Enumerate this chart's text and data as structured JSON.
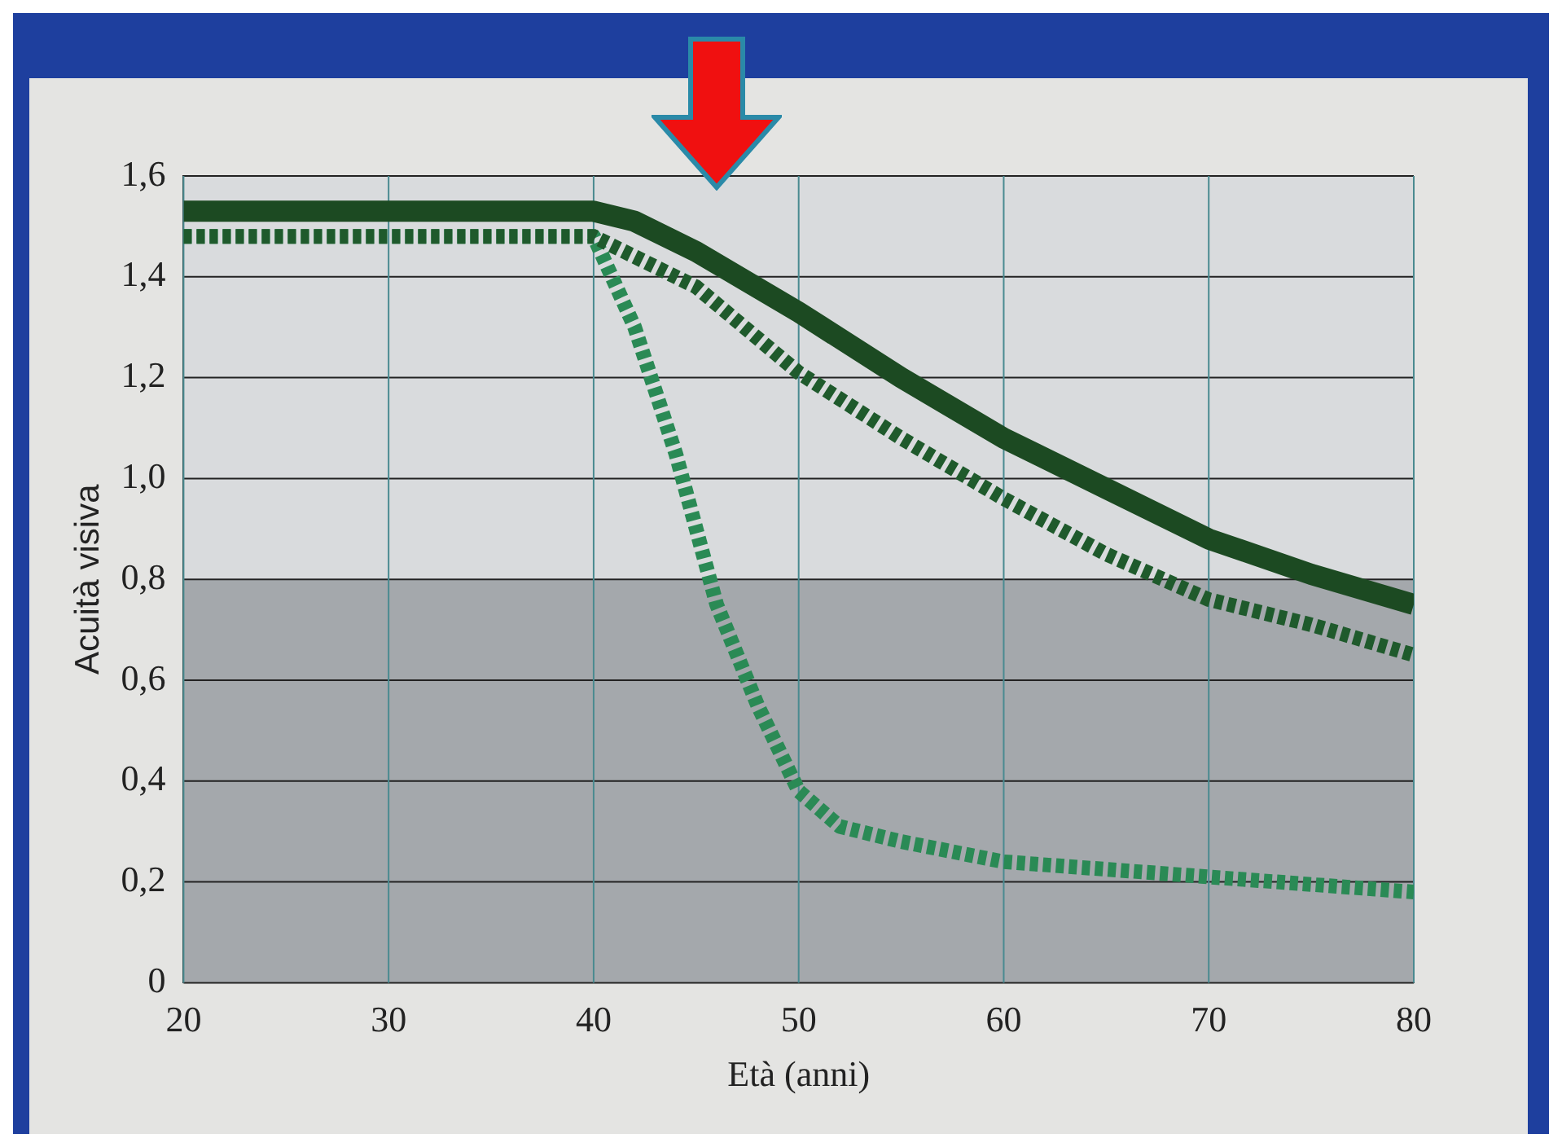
{
  "chart_data": {
    "type": "line",
    "xlabel": "Età (anni)",
    "ylabel": "Acuità visiva",
    "xlim": [
      20,
      80
    ],
    "xticks": [
      20,
      30,
      40,
      50,
      60,
      70,
      80
    ],
    "ylim": [
      0,
      1.6
    ],
    "yticks": [
      0,
      {
        "value": 0.2,
        "label": "0,2"
      },
      {
        "value": 0.4,
        "label": "0,4"
      },
      {
        "value": 0.6,
        "label": "0,6"
      },
      {
        "value": 0.8,
        "label": "0,8"
      },
      {
        "value": 1.0,
        "label": "1,0"
      },
      {
        "value": 1.2,
        "label": "1,2"
      },
      {
        "value": 1.4,
        "label": "1,4"
      },
      {
        "value": 1.6,
        "label": "1,6"
      }
    ],
    "grid": true,
    "marker": "none",
    "bands": [
      {
        "axis": "y",
        "from": 0,
        "to": 0.8,
        "color": "#a4a8ac"
      }
    ],
    "series": [
      {
        "color": "#1c4a22",
        "line_style": "solid",
        "x": [
          20,
          40,
          42,
          45,
          50,
          55,
          60,
          65,
          70,
          75,
          80
        ],
        "values": [
          1.53,
          1.53,
          1.51,
          1.45,
          1.33,
          1.2,
          1.08,
          0.98,
          0.88,
          0.81,
          0.75
        ]
      },
      {
        "color": "#1f5a2c",
        "line_style": "dashed",
        "x": [
          20,
          40,
          45,
          50,
          55,
          60,
          65,
          70,
          75,
          80
        ],
        "values": [
          1.48,
          1.48,
          1.38,
          1.21,
          1.08,
          0.96,
          0.85,
          0.76,
          0.71,
          0.65
        ]
      },
      {
        "color": "#2a8a55",
        "line_style": "dashed",
        "x": [
          20,
          40,
          42,
          44,
          46,
          48,
          50,
          52,
          55,
          60,
          70,
          80
        ],
        "values": [
          1.48,
          1.48,
          1.3,
          1.05,
          0.75,
          0.55,
          0.38,
          0.31,
          0.28,
          0.24,
          0.21,
          0.18
        ]
      }
    ]
  }
}
